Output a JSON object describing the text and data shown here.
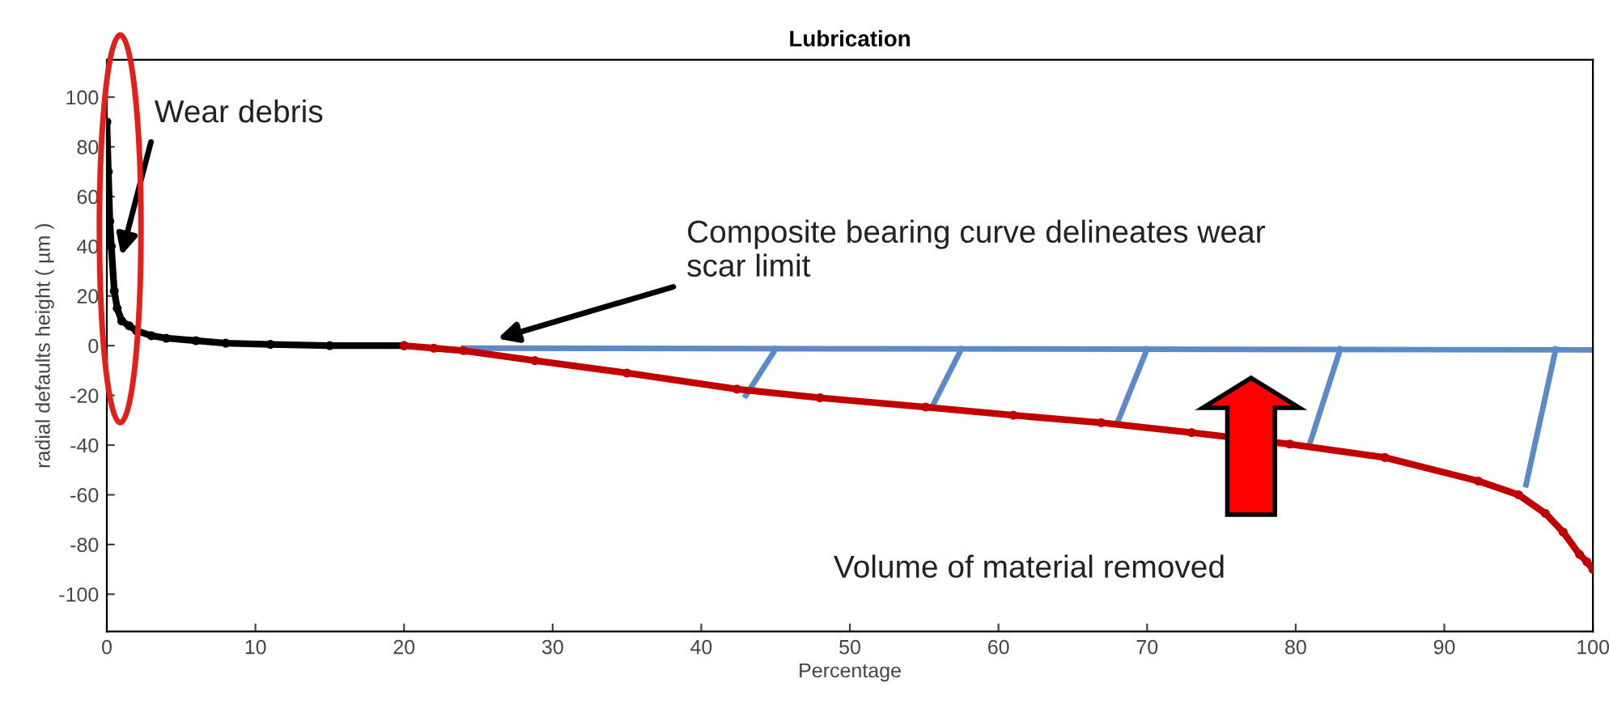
{
  "chart_data": {
    "type": "line",
    "title": "Lubrication",
    "xlabel": "Percentage",
    "ylabel": "radial defaults height ( µm )",
    "series": [
      {
        "color": "#000000",
        "marker": "circle",
        "x": [
          0,
          0.1,
          0.2,
          0.3,
          0.5,
          0.7,
          1,
          1.5,
          2,
          3,
          4,
          6,
          8,
          11,
          15,
          20
        ],
        "values": [
          90,
          70,
          50,
          40,
          22,
          15,
          10,
          8,
          6,
          4,
          3,
          2,
          1,
          0.5,
          0,
          0
        ]
      },
      {
        "color": "#c00000",
        "marker": "circle",
        "x": [
          20,
          22,
          24,
          28.8,
          35,
          42.4,
          48,
          55.1,
          61,
          66.9,
          73,
          79.6,
          86,
          92.3,
          95,
          96.8,
          98,
          99.1,
          99.6,
          100
        ],
        "values": [
          0,
          -1,
          -2,
          -6,
          -11,
          -17.5,
          -21,
          -24.7,
          -28,
          -31,
          -35,
          -39.6,
          -45,
          -54.5,
          -60,
          -67.5,
          -75,
          -84,
          -87,
          -90
        ]
      },
      {
        "color": "#5b8ac6",
        "marker": "none",
        "x": [
          24,
          100
        ],
        "values": [
          -1,
          -1.7
        ]
      }
    ],
    "xlim": [
      0,
      100
    ],
    "xticks": [
      0,
      10,
      20,
      30,
      40,
      50,
      60,
      70,
      80,
      90,
      100
    ],
    "ylim": [
      -115,
      115
    ],
    "yticks": [
      -100,
      -80,
      -60,
      -40,
      -20,
      0,
      20,
      40,
      60,
      80,
      100
    ],
    "grid": false,
    "legend": false,
    "annotations": [
      "Wear debris",
      "Composite bearing curve delineates wear\nscar limit",
      "Volume of material removed"
    ]
  }
}
